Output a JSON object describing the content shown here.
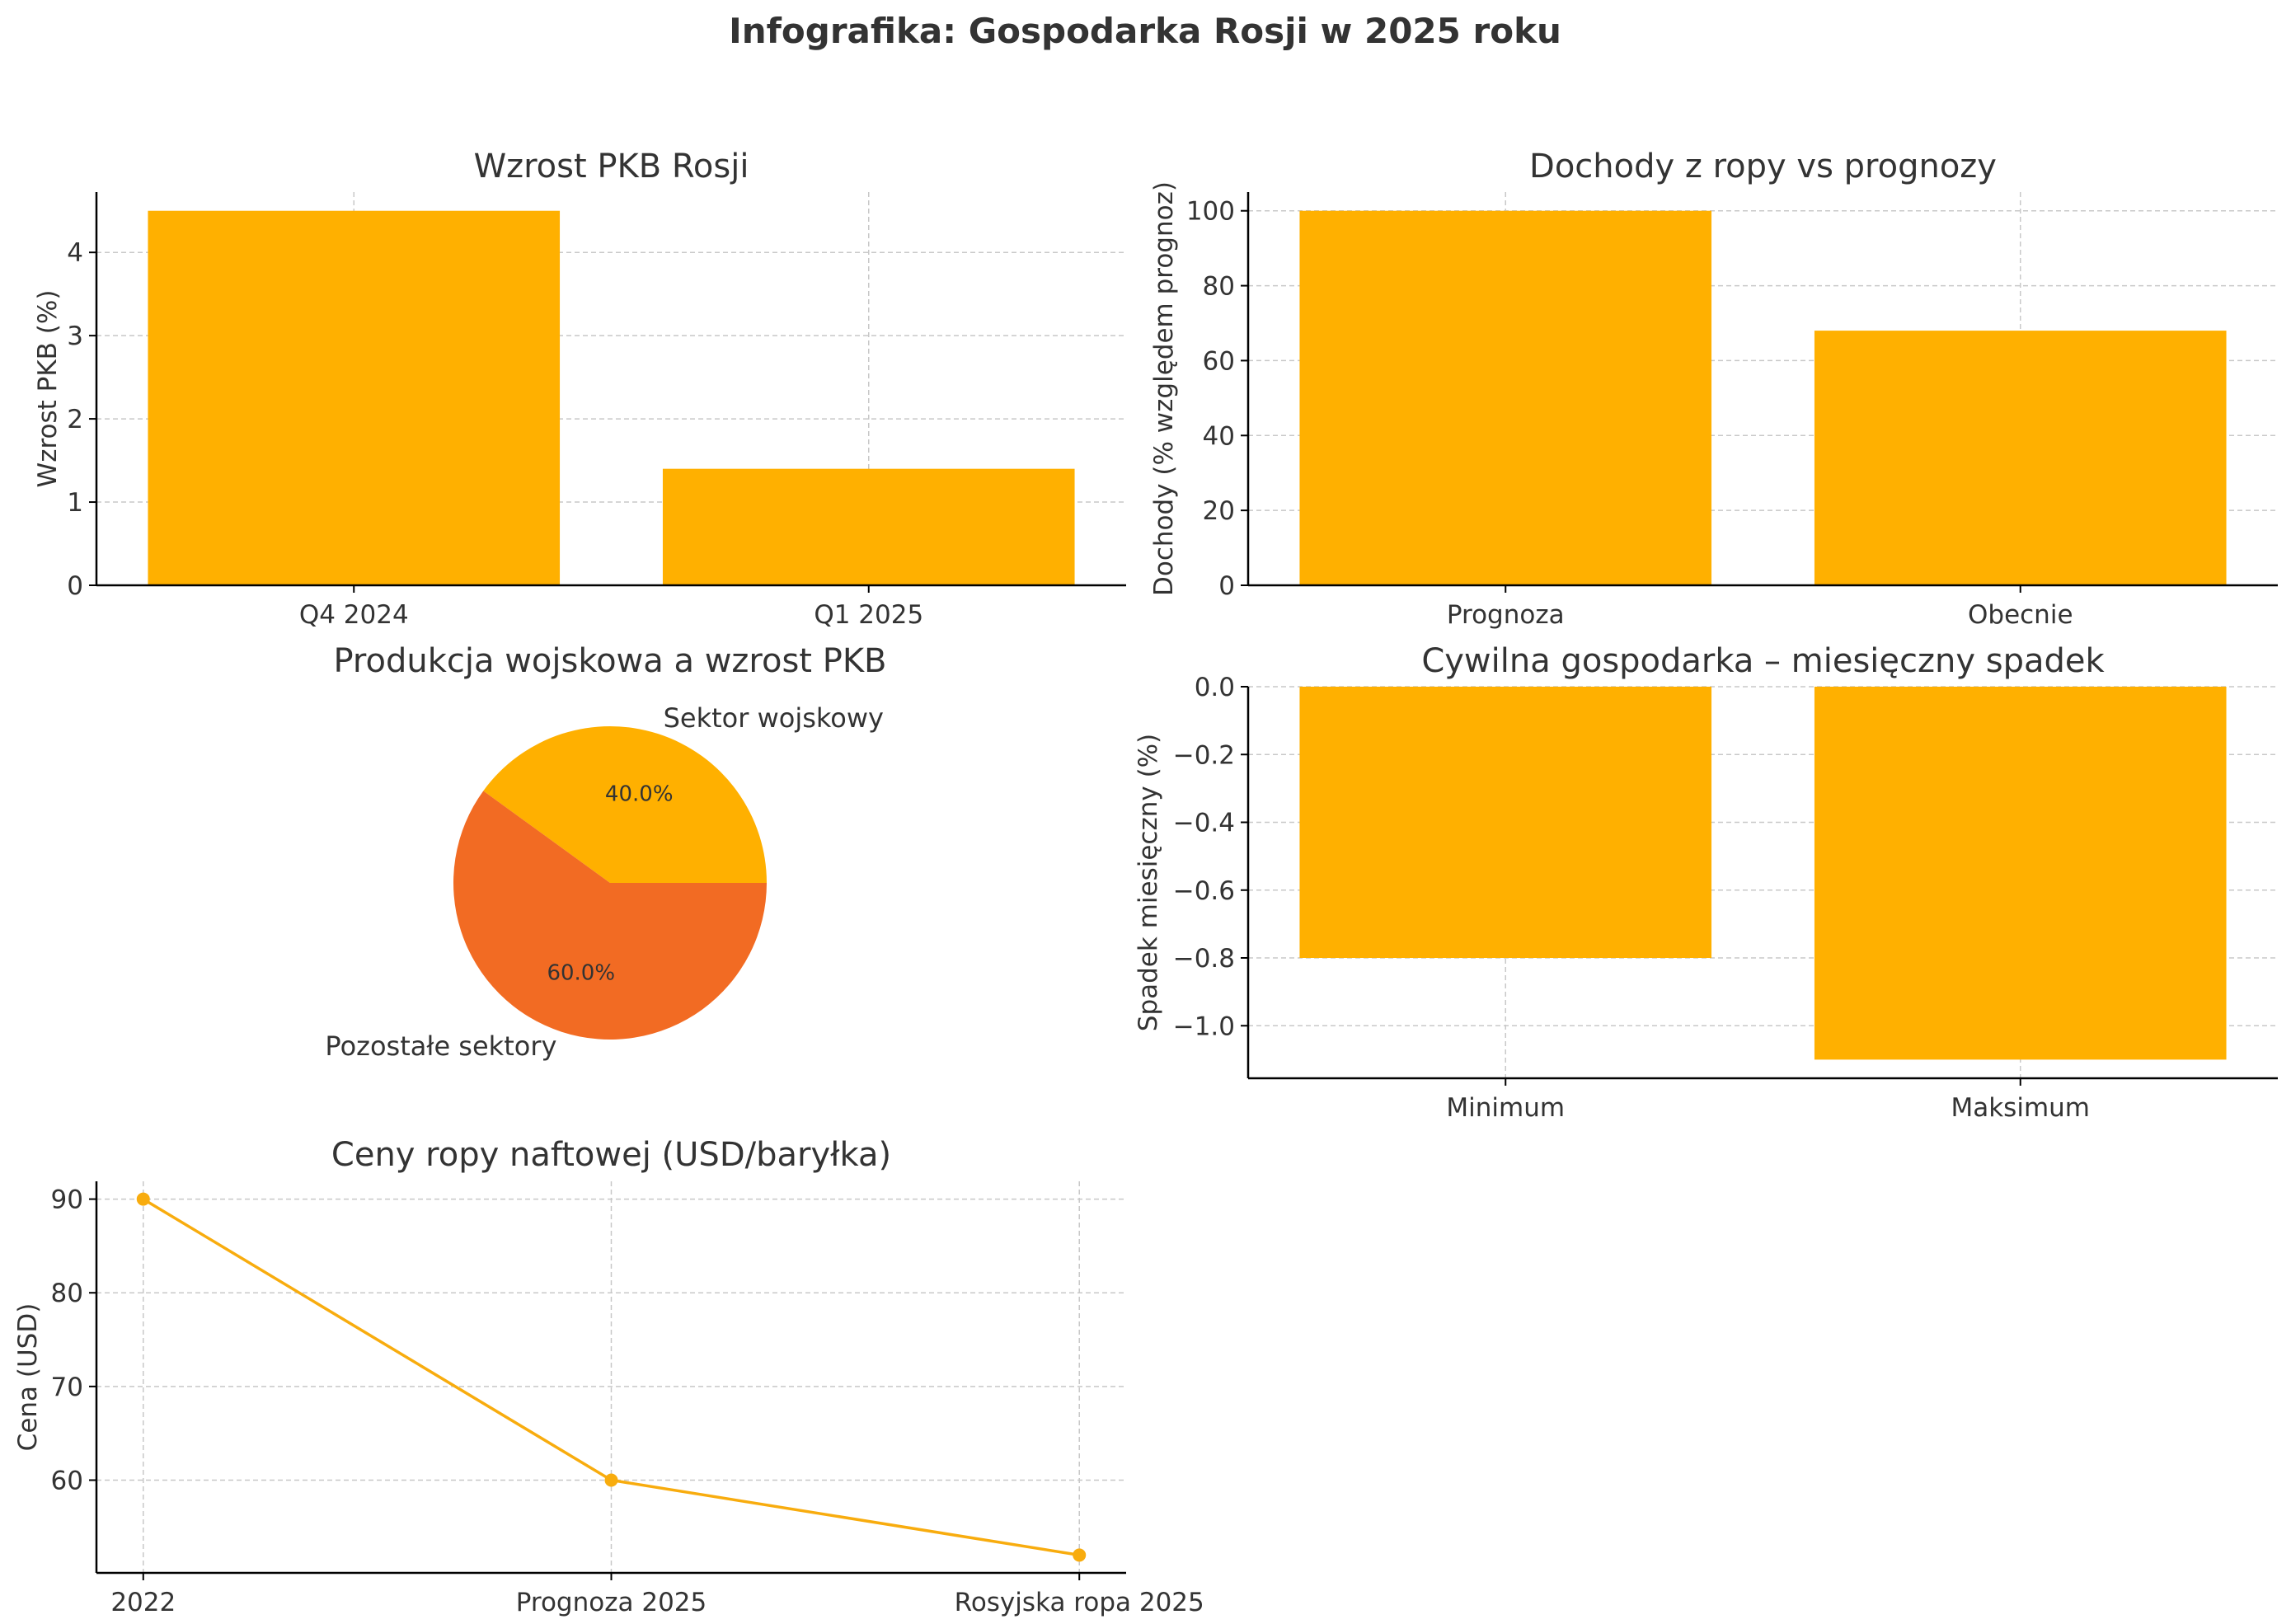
{
  "title": "Infografika: Gospodarka Rosji w 2025 roku",
  "colors": {
    "bar": "#FFB000",
    "pie_secondary": "#F26B23",
    "line": "#F8AC0E",
    "text": "#333333",
    "grid": "#C8C8C8",
    "axis": "#000000"
  },
  "chart_data": [
    {
      "type": "bar",
      "title": "Wzrost PKB Rosji",
      "categories": [
        "Q4 2024",
        "Q1 2025"
      ],
      "values": [
        4.5,
        1.4
      ],
      "xlabel": "",
      "ylabel": "Wzrost PKB (%)",
      "ylim": [
        0,
        4.725
      ],
      "yticks": [
        0,
        1,
        2,
        3,
        4
      ],
      "ytick_labels": [
        "0",
        "1",
        "2",
        "3",
        "4"
      ]
    },
    {
      "type": "bar",
      "title": "Dochody z ropy vs prognozy",
      "categories": [
        "Prognoza",
        "Obecnie"
      ],
      "values": [
        100,
        68
      ],
      "xlabel": "",
      "ylabel": "Dochody (% względem prognoz)",
      "ylim": [
        0,
        105
      ],
      "yticks": [
        0,
        20,
        40,
        60,
        80,
        100
      ],
      "ytick_labels": [
        "0",
        "20",
        "40",
        "60",
        "80",
        "100"
      ]
    },
    {
      "type": "pie",
      "title": "Produkcja wojskowa a wzrost PKB",
      "labels": [
        "Sektor wojskowy",
        "Pozostałe sektory"
      ],
      "values": [
        40,
        60
      ],
      "autopct": [
        "40.0%",
        "60.0%"
      ],
      "start_angle": 0
    },
    {
      "type": "bar",
      "title": "Cywilna gospodarka – miesięczny spadek",
      "categories": [
        "Minimum",
        "Maksimum"
      ],
      "values": [
        -0.8,
        -1.1
      ],
      "xlabel": "",
      "ylabel": "Spadek miesięczny (%)",
      "ylim": [
        -1.155,
        0
      ],
      "yticks": [
        0,
        -0.2,
        -0.4,
        -0.6,
        -0.8,
        -1.0
      ],
      "ytick_labels": [
        "0.0",
        "−0.2",
        "−0.4",
        "−0.6",
        "−0.8",
        "−1.0"
      ]
    },
    {
      "type": "line",
      "title": "Ceny ropy naftowej (USD/baryłka)",
      "categories": [
        "2022",
        "Prognoza 2025",
        "Rosyjska ropa 2025"
      ],
      "values": [
        90,
        60,
        52
      ],
      "xlabel": "",
      "ylabel": "Cena (USD)",
      "ylim": [
        50.1,
        91.9
      ],
      "yticks": [
        60,
        70,
        80,
        90
      ],
      "ytick_labels": [
        "60",
        "70",
        "80",
        "90"
      ]
    }
  ]
}
